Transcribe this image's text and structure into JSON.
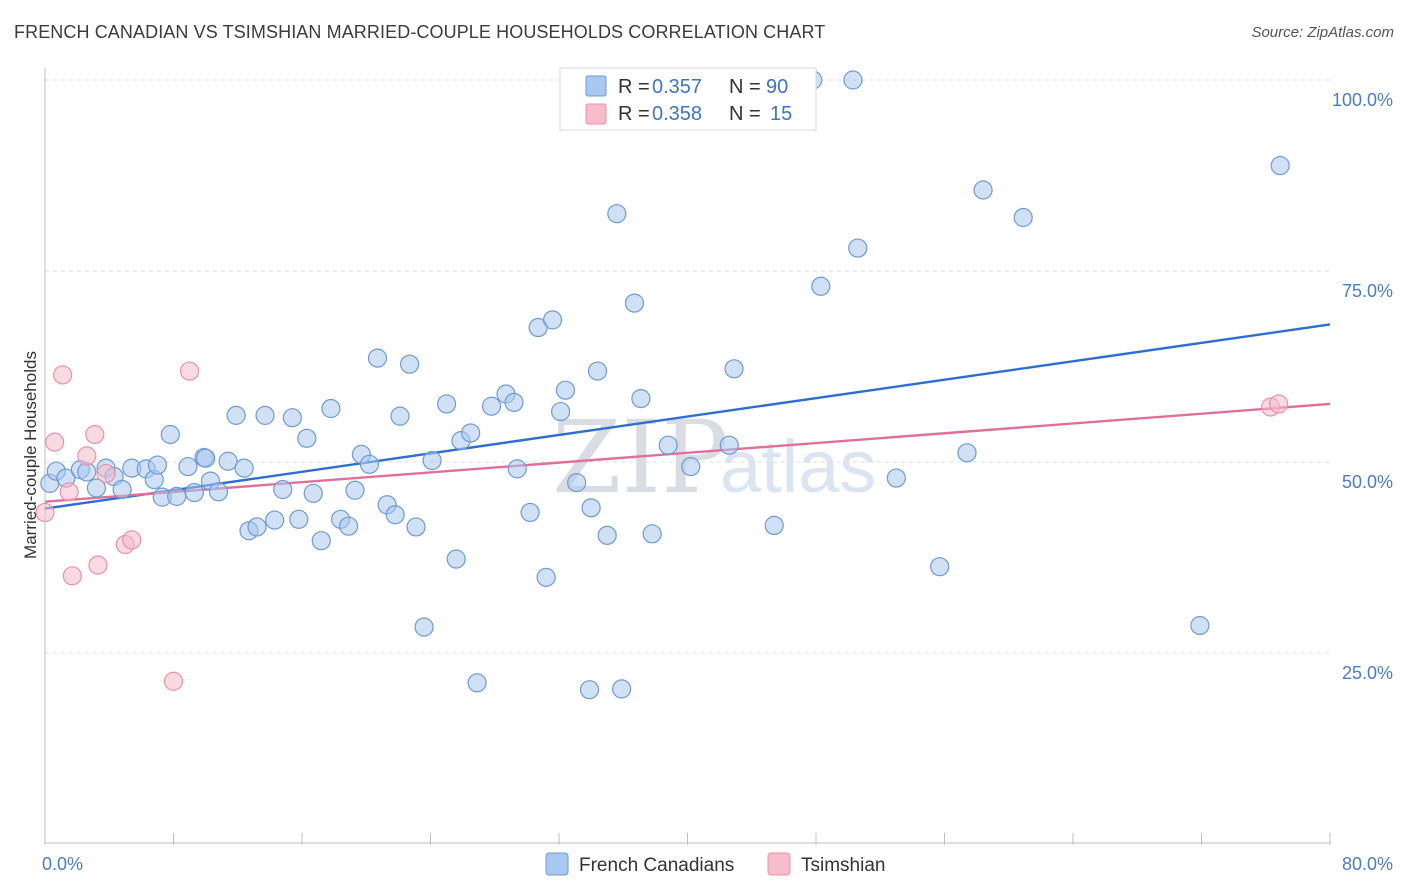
{
  "header": {
    "title": "FRENCH CANADIAN VS TSIMSHIAN MARRIED-COUPLE HOUSEHOLDS CORRELATION CHART",
    "source": "Source: ZipAtlas.com"
  },
  "watermark": {
    "part1": "ZIP",
    "part2": "atlas"
  },
  "legend": {
    "rows": [
      {
        "r_label": "R = ",
        "r_value": "0.357",
        "n_label": "N = ",
        "n_value": "90"
      },
      {
        "r_label": "R = ",
        "r_value": "0.358",
        "n_label": "N = ",
        "n_value": "15"
      }
    ]
  },
  "colors": {
    "series1_fill": "#a9c8ef",
    "series1_stroke": "#6f9ad6",
    "series1_line": "#2d6fd0",
    "series2_fill": "#f6bccb",
    "series2_stroke": "#e891aa",
    "series2_line": "#e0709a",
    "grid": "#dcdcdc",
    "axis_label": "#4a7cc9"
  },
  "chart_data": {
    "type": "scatter",
    "title": "FRENCH CANADIAN VS TSIMSHIAN MARRIED-COUPLE HOUSEHOLDS CORRELATION CHART",
    "xlabel": "",
    "ylabel": "Married-couple Households",
    "xlim": [
      0,
      80
    ],
    "ylim": [
      0,
      105
    ],
    "x_tick_labels": [
      "0.0%",
      "80.0%"
    ],
    "y_ticks": [
      25,
      50,
      75,
      100
    ],
    "y_tick_labels": [
      "25.0%",
      "50.0%",
      "75.0%",
      "100.0%"
    ],
    "grid": true,
    "legend_position": "top-center",
    "series": [
      {
        "name": "French Canadians",
        "r": 0.357,
        "n": 90,
        "trend": {
          "x0": 0,
          "y0": 43.9,
          "x1": 80,
          "y1": 68.0
        },
        "points": [
          [
            0.3,
            47.2
          ],
          [
            0.7,
            48.8
          ],
          [
            1.3,
            47.9
          ],
          [
            2.2,
            49.0
          ],
          [
            2.6,
            48.7
          ],
          [
            3.2,
            46.6
          ],
          [
            3.8,
            49.2
          ],
          [
            4.3,
            48.1
          ],
          [
            4.8,
            46.4
          ],
          [
            5.4,
            49.2
          ],
          [
            6.3,
            49.1
          ],
          [
            6.8,
            47.7
          ],
          [
            7.0,
            49.6
          ],
          [
            7.3,
            45.4
          ],
          [
            7.8,
            53.6
          ],
          [
            8.2,
            45.5
          ],
          [
            8.9,
            49.4
          ],
          [
            9.3,
            46.0
          ],
          [
            9.9,
            50.6
          ],
          [
            10.3,
            47.5
          ],
          [
            10.8,
            46.1
          ],
          [
            11.4,
            50.1
          ],
          [
            11.9,
            56.1
          ],
          [
            12.4,
            49.2
          ],
          [
            12.7,
            41.0
          ],
          [
            13.2,
            41.5
          ],
          [
            13.7,
            56.1
          ],
          [
            14.3,
            42.4
          ],
          [
            14.8,
            46.4
          ],
          [
            15.4,
            55.8
          ],
          [
            15.8,
            42.5
          ],
          [
            16.3,
            53.1
          ],
          [
            16.7,
            45.9
          ],
          [
            17.2,
            39.7
          ],
          [
            17.8,
            57.0
          ],
          [
            18.4,
            42.5
          ],
          [
            18.9,
            41.6
          ],
          [
            19.3,
            46.3
          ],
          [
            19.7,
            51.0
          ],
          [
            20.2,
            49.7
          ],
          [
            20.7,
            63.6
          ],
          [
            21.3,
            44.4
          ],
          [
            21.8,
            43.1
          ],
          [
            22.1,
            56.0
          ],
          [
            22.7,
            62.8
          ],
          [
            23.1,
            41.5
          ],
          [
            23.6,
            28.4
          ],
          [
            24.1,
            50.2
          ],
          [
            25.0,
            57.6
          ],
          [
            25.6,
            37.3
          ],
          [
            25.9,
            52.8
          ],
          [
            26.5,
            53.8
          ],
          [
            26.9,
            21.1
          ],
          [
            27.8,
            57.3
          ],
          [
            28.7,
            58.9
          ],
          [
            29.2,
            57.8
          ],
          [
            29.4,
            49.1
          ],
          [
            30.2,
            43.4
          ],
          [
            30.7,
            67.6
          ],
          [
            31.2,
            34.9
          ],
          [
            31.6,
            68.6
          ],
          [
            32.1,
            56.6
          ],
          [
            32.4,
            59.4
          ],
          [
            33.1,
            47.3
          ],
          [
            33.9,
            20.2
          ],
          [
            34.0,
            44.0
          ],
          [
            34.4,
            61.9
          ],
          [
            35.0,
            40.4
          ],
          [
            35.6,
            82.5
          ],
          [
            35.9,
            20.3
          ],
          [
            36.7,
            70.8
          ],
          [
            37.1,
            58.3
          ],
          [
            37.8,
            40.6
          ],
          [
            38.8,
            52.2
          ],
          [
            40.2,
            49.4
          ],
          [
            42.6,
            52.2
          ],
          [
            42.9,
            62.2
          ],
          [
            45.4,
            41.7
          ],
          [
            47.8,
            100.0
          ],
          [
            48.3,
            73.0
          ],
          [
            50.3,
            100.0
          ],
          [
            50.6,
            78.0
          ],
          [
            53.0,
            47.9
          ],
          [
            55.7,
            36.3
          ],
          [
            57.4,
            51.2
          ],
          [
            58.4,
            85.6
          ],
          [
            60.9,
            82.0
          ],
          [
            71.9,
            28.6
          ],
          [
            76.9,
            88.8
          ],
          [
            10.0,
            50.5
          ]
        ]
      },
      {
        "name": "Tsimshian",
        "r": 0.358,
        "n": 15,
        "trend": {
          "x0": 0,
          "y0": 44.8,
          "x1": 80,
          "y1": 57.6
        },
        "points": [
          [
            0.0,
            43.4
          ],
          [
            0.6,
            52.6
          ],
          [
            1.1,
            61.4
          ],
          [
            1.5,
            46.1
          ],
          [
            1.7,
            35.1
          ],
          [
            2.6,
            50.8
          ],
          [
            3.1,
            53.6
          ],
          [
            3.3,
            36.5
          ],
          [
            3.8,
            48.5
          ],
          [
            5.0,
            39.2
          ],
          [
            5.4,
            39.8
          ],
          [
            8.0,
            21.3
          ],
          [
            9.0,
            61.9
          ],
          [
            76.3,
            57.2
          ],
          [
            76.8,
            57.6
          ]
        ]
      }
    ]
  },
  "bottom_legend": {
    "items": [
      {
        "label": "French Canadians"
      },
      {
        "label": "Tsimshian"
      }
    ]
  }
}
